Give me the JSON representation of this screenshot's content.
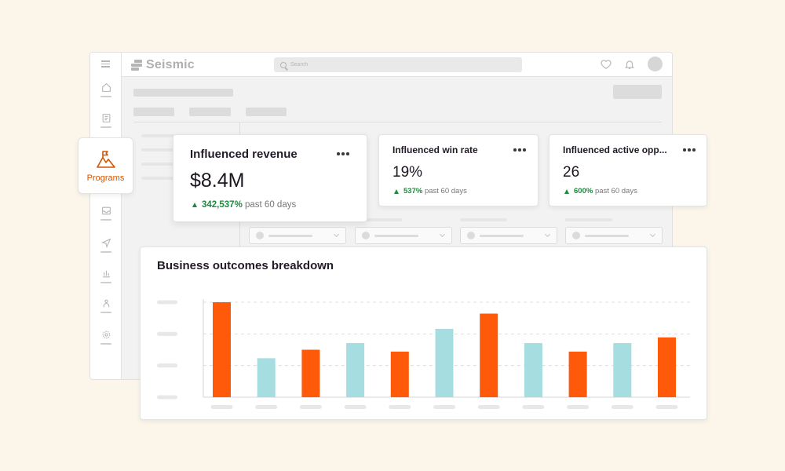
{
  "app": {
    "logo_text": "Seismic",
    "search_placeholder": "Search"
  },
  "programs": {
    "label": "Programs",
    "accent": "#d35400"
  },
  "kpis": [
    {
      "title": "Influenced revenue",
      "value": "$8.4M",
      "delta_pct": "342,537%",
      "delta_text": "past 60 days"
    },
    {
      "title": "Influenced win rate",
      "value": "19%",
      "delta_pct": "537%",
      "delta_text": "past 60 days"
    },
    {
      "title": "Influenced active opp...",
      "value": "26",
      "delta_pct": "600%",
      "delta_text": "past 60 days"
    }
  ],
  "chart": {
    "title": "Business outcomes breakdown"
  },
  "chart_data": {
    "type": "bar",
    "title": "Business outcomes breakdown",
    "xlabel": "",
    "ylabel": "",
    "ylim": [
      0,
      100
    ],
    "grid": true,
    "categories": [
      "",
      "",
      "",
      "",
      "",
      "",
      "",
      "",
      "",
      "",
      ""
    ],
    "values": [
      100,
      41,
      50,
      57,
      48,
      72,
      88,
      57,
      48,
      57,
      63
    ],
    "colors": [
      "#ff5a0a",
      "#a5dde0",
      "#ff5a0a",
      "#a5dde0",
      "#ff5a0a",
      "#a5dde0",
      "#ff5a0a",
      "#a5dde0",
      "#ff5a0a",
      "#a5dde0",
      "#ff5a0a"
    ]
  }
}
